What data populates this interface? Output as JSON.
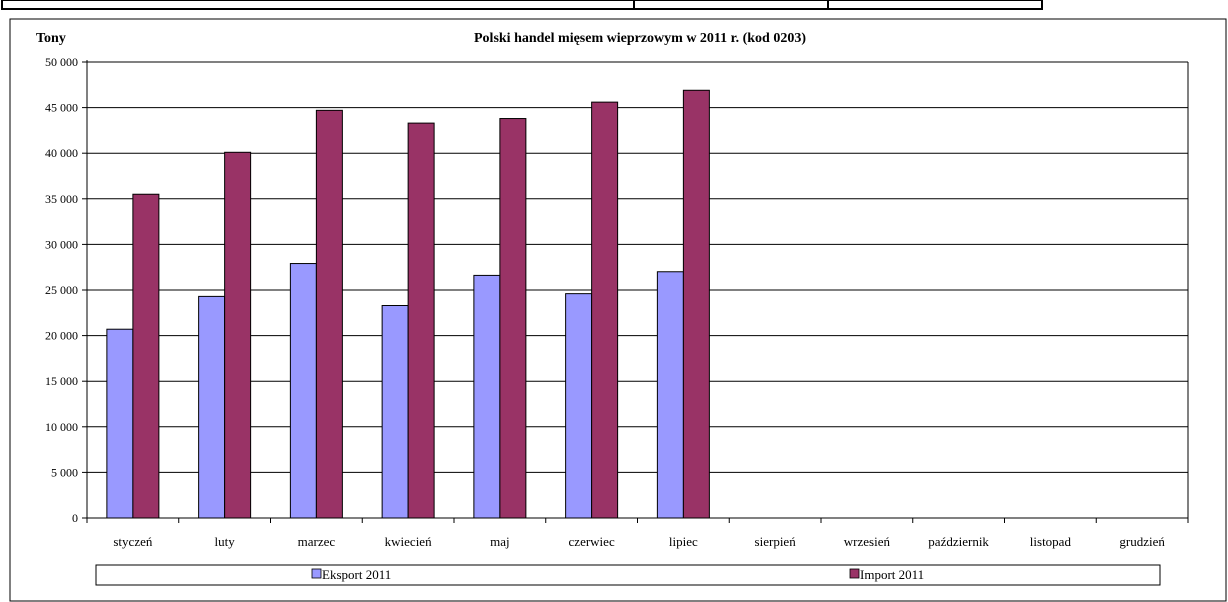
{
  "chart_data": {
    "type": "bar",
    "title": "Polski handel mięsem wieprzowym w 2011 r. (kod 0203)",
    "ylabel": "Tony",
    "xlabel": "",
    "ylim": [
      0,
      50000
    ],
    "yticks": [
      "0",
      "5 000",
      "10 000",
      "15 000",
      "20 000",
      "25 000",
      "30 000",
      "35 000",
      "40 000",
      "45 000",
      "50 000"
    ],
    "ytick_values": [
      0,
      5000,
      10000,
      15000,
      20000,
      25000,
      30000,
      35000,
      40000,
      45000,
      50000
    ],
    "categories": [
      "styczeń",
      "luty",
      "marzec",
      "kwiecień",
      "maj",
      "czerwiec",
      "lipiec",
      "sierpień",
      "wrzesień",
      "październik",
      "listopad",
      "grudzień"
    ],
    "series": [
      {
        "name": "Eksport 2011",
        "color": "#9999ff",
        "values": [
          20700,
          24300,
          27900,
          23300,
          26600,
          24600,
          27000,
          null,
          null,
          null,
          null,
          null
        ]
      },
      {
        "name": "Import 2011",
        "color": "#993366",
        "values": [
          35500,
          40100,
          44700,
          43300,
          43800,
          45600,
          46900,
          null,
          null,
          null,
          null,
          null
        ]
      }
    ],
    "grid": true,
    "legend": "bottom"
  }
}
